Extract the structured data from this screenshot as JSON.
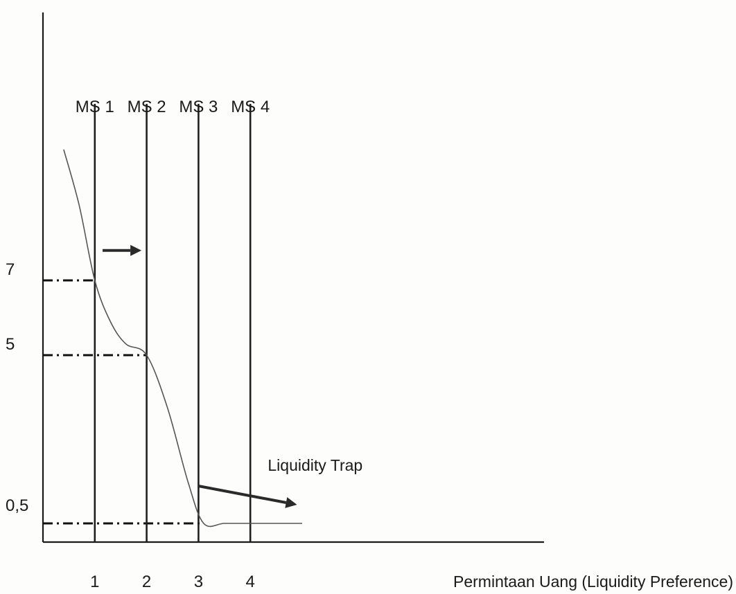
{
  "chart_data": {
    "type": "line",
    "title": "",
    "xlabel": "Permintaan Uang (Liquidity Preference)",
    "ylabel": "",
    "xlim": [
      0,
      6.3
    ],
    "ylim": [
      0,
      11.8
    ],
    "x_ticks": [
      {
        "value": 1,
        "label": "1"
      },
      {
        "value": 2,
        "label": "2"
      },
      {
        "value": 3,
        "label": "3"
      },
      {
        "value": 4,
        "label": "4"
      }
    ],
    "y_ticks": [
      {
        "value": 7,
        "label": "7"
      },
      {
        "value": 5,
        "label": "5"
      },
      {
        "value": 0.5,
        "label": "0,5"
      }
    ],
    "money_supply": [
      {
        "name": "MS 1",
        "x": 1
      },
      {
        "name": "MS 2",
        "x": 2
      },
      {
        "name": "MS 3",
        "x": 3
      },
      {
        "name": "MS 4",
        "x": 4
      }
    ],
    "demand_curve": {
      "x": [
        0.4,
        0.7,
        1.0,
        1.3,
        1.6,
        2.0,
        2.4,
        2.8,
        3.1,
        3.5,
        4.0,
        4.5,
        5.0
      ],
      "y": [
        10.5,
        9.0,
        7.0,
        5.9,
        5.3,
        5.0,
        3.6,
        1.6,
        0.5,
        0.5,
        0.5,
        0.5,
        0.5
      ]
    },
    "reference_lines": [
      {
        "y": 7,
        "x_end": 1
      },
      {
        "y": 5,
        "x_end": 2
      },
      {
        "y": 0.5,
        "x_end": 3.1
      }
    ],
    "annotations": [
      {
        "text": "Liquidity Trap",
        "arrow_from": [
          3,
          1.5
        ],
        "arrow_to": [
          4.9,
          1.0
        ]
      }
    ],
    "shift_arrow": {
      "from": [
        1.15,
        7.8
      ],
      "to": [
        1.9,
        7.8
      ]
    },
    "grid": false,
    "legend": "none"
  }
}
